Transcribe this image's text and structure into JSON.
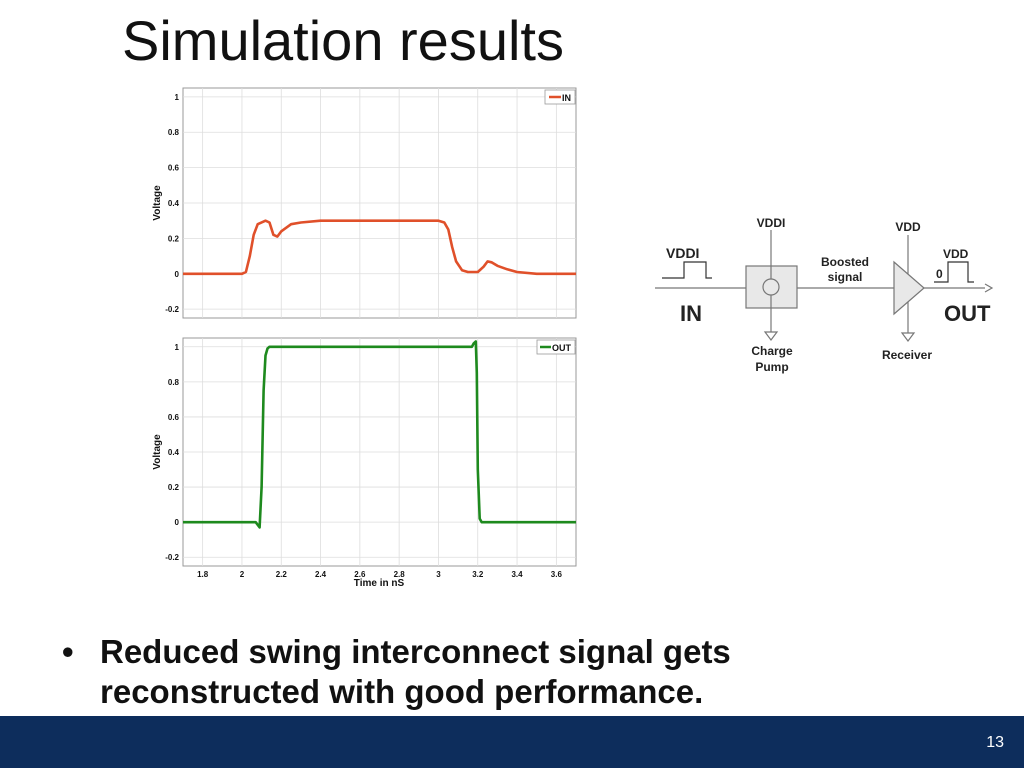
{
  "slide": {
    "title": "Simulation results",
    "bullet_symbol": "•",
    "bullet_lines": [
      "Reduced swing interconnect signal gets",
      "reconstructed with good performance."
    ],
    "page_number": "13"
  },
  "chart_data": [
    {
      "type": "line",
      "title": "",
      "xlabel": "",
      "ylabel": "Voltage",
      "xlim": [
        1.7,
        3.7
      ],
      "ylim": [
        -0.25,
        1.05
      ],
      "yticks": [
        -0.2,
        0,
        0.2,
        0.4,
        0.6,
        0.8,
        1
      ],
      "ytick_labels": [
        "-0.2",
        "0",
        "0.2",
        "0.4",
        "0.6",
        "0.8",
        "1"
      ],
      "grid": true,
      "legend": "top-right",
      "series": [
        {
          "name": "IN",
          "color": "#e0502a",
          "x": [
            1.7,
            2.0,
            2.02,
            2.04,
            2.06,
            2.08,
            2.12,
            2.14,
            2.16,
            2.18,
            2.2,
            2.25,
            2.3,
            2.4,
            2.5,
            2.6,
            2.8,
            3.0,
            3.03,
            3.05,
            3.07,
            3.09,
            3.12,
            3.15,
            3.2,
            3.23,
            3.25,
            3.27,
            3.3,
            3.35,
            3.4,
            3.5,
            3.7
          ],
          "y": [
            0.0,
            0.0,
            0.01,
            0.1,
            0.22,
            0.28,
            0.3,
            0.29,
            0.22,
            0.21,
            0.24,
            0.28,
            0.29,
            0.3,
            0.3,
            0.3,
            0.3,
            0.3,
            0.29,
            0.25,
            0.15,
            0.07,
            0.02,
            0.01,
            0.01,
            0.04,
            0.07,
            0.065,
            0.045,
            0.025,
            0.01,
            0.0,
            0.0
          ]
        }
      ]
    },
    {
      "type": "line",
      "title": "",
      "xlabel": "Time in nS",
      "ylabel": "Voltage",
      "xlim": [
        1.7,
        3.7
      ],
      "ylim": [
        -0.25,
        1.05
      ],
      "xticks": [
        1.8,
        2,
        2.2,
        2.4,
        2.6,
        2.8,
        3,
        3.2,
        3.4,
        3.6
      ],
      "xtick_labels": [
        "1.8",
        "2",
        "2.2",
        "2.4",
        "2.6",
        "2.8",
        "3",
        "3.2",
        "3.4",
        "3.6"
      ],
      "yticks": [
        -0.2,
        0,
        0.2,
        0.4,
        0.6,
        0.8,
        1
      ],
      "ytick_labels": [
        "-0.2",
        "0",
        "0.2",
        "0.4",
        "0.6",
        "0.8",
        "1"
      ],
      "grid": true,
      "legend": "top-right",
      "series": [
        {
          "name": "OUT",
          "color": "#1e8a1e",
          "x": [
            1.7,
            2.07,
            2.09,
            2.1,
            2.11,
            2.12,
            2.13,
            2.14,
            2.5,
            3.0,
            3.17,
            3.18,
            3.19,
            3.195,
            3.2,
            3.21,
            3.22,
            3.7
          ],
          "y": [
            0.0,
            0.0,
            -0.03,
            0.2,
            0.75,
            0.95,
            0.99,
            1.0,
            1.0,
            1.0,
            1.0,
            1.02,
            1.03,
            0.85,
            0.3,
            0.02,
            0.0,
            0.0
          ]
        }
      ]
    }
  ],
  "diagram": {
    "in_label": "IN",
    "out_label": "OUT",
    "in_wave_label": "VDDI",
    "charge_pump_supply": "VDDI",
    "boosted_line1": "Boosted",
    "boosted_line2": "signal",
    "receiver_supply": "VDD",
    "out_wave_high": "VDD",
    "out_wave_low": "0",
    "charge_pump_line1": "Charge",
    "charge_pump_line2": "Pump",
    "receiver_label": "Receiver"
  }
}
